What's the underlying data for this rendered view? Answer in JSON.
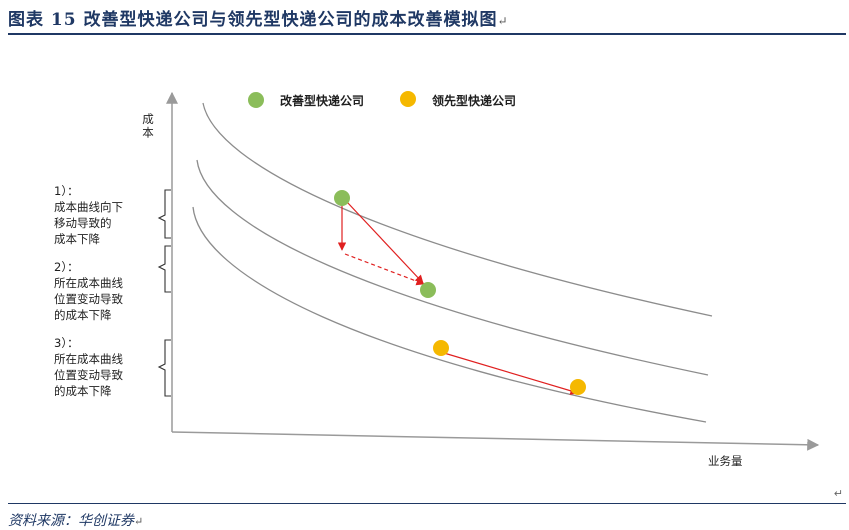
{
  "title": "图表 15   改善型快递公司与领先型快递公司的成本改善模拟图",
  "source": "资料来源：华创证券",
  "return_mark": "↵",
  "axes": {
    "y_label": "成本",
    "x_label": "业务量"
  },
  "legend": [
    {
      "name": "改善型快递公司",
      "color": "#8bbd5a"
    },
    {
      "name": "领先型快递公司",
      "color": "#f5b800"
    }
  ],
  "annotations": [
    {
      "number": "1）：",
      "lines": [
        "成本曲线向下",
        "移动导致的",
        "成本下降"
      ]
    },
    {
      "number": "2）：",
      "lines": [
        "所在成本曲线",
        "位置变动导致",
        "的成本下降"
      ]
    },
    {
      "number": "3）：",
      "lines": [
        "所在成本曲线",
        "位置变动导致",
        "的成本下降"
      ]
    }
  ],
  "colors": {
    "curve": "#8c8c8c",
    "arrow": "#e02020",
    "bracket": "#333333",
    "title": "#1f3864"
  }
}
